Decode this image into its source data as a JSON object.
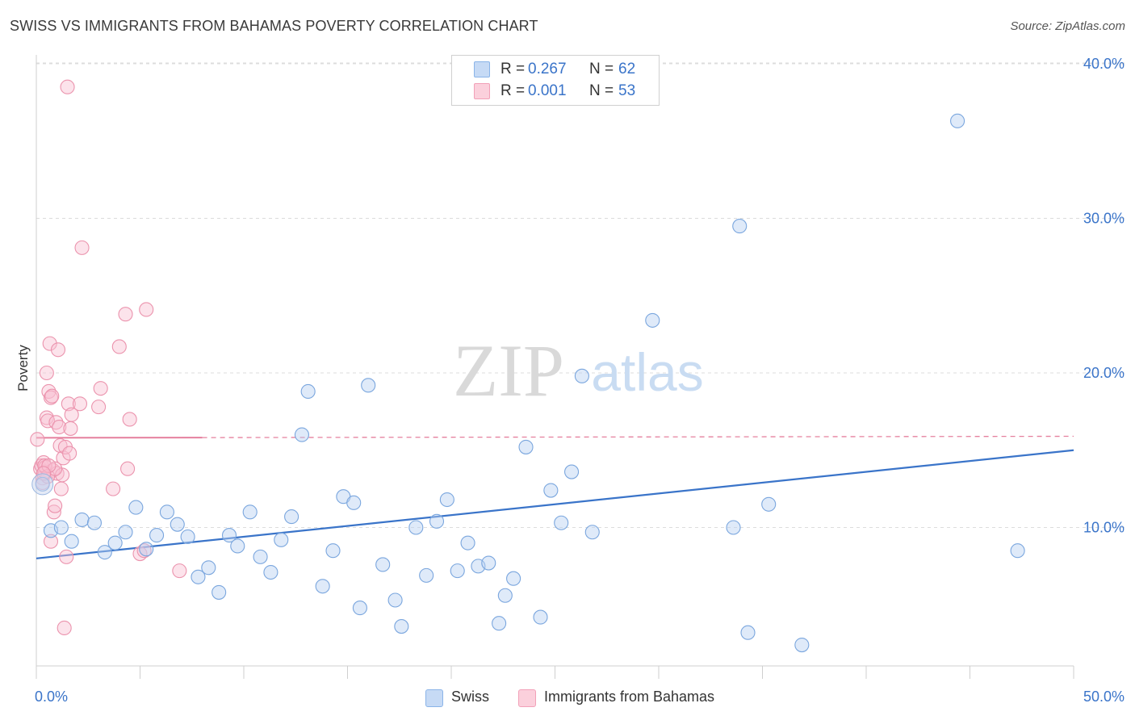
{
  "header": {
    "title": "SWISS VS IMMIGRANTS FROM BAHAMAS POVERTY CORRELATION CHART",
    "source": "Source: ZipAtlas.com"
  },
  "watermark": {
    "zip": "ZIP",
    "atlas": "atlas"
  },
  "legend": {
    "rows": [
      {
        "r_label": "R =",
        "r_value": "0.267",
        "n_label": "N =",
        "n_value": "62",
        "color": "#8ab4e8"
      },
      {
        "r_label": "R =",
        "r_value": "0.001",
        "n_label": "N =",
        "n_value": "53",
        "color": "#f2a0b8"
      }
    ]
  },
  "bottom_legend": {
    "items": [
      {
        "label": "Swiss",
        "color": "#8ab4e8"
      },
      {
        "label": "Immigrants from Bahamas",
        "color": "#f2a0b8"
      }
    ]
  },
  "chart_data": {
    "type": "scatter",
    "title": "SWISS VS IMMIGRANTS FROM BAHAMAS POVERTY CORRELATION CHART",
    "xlabel": "",
    "ylabel": "Poverty",
    "xlim": [
      0,
      50
    ],
    "ylim": [
      0,
      42
    ],
    "x_tick_labels": [
      "0.0%",
      "50.0%"
    ],
    "y_ticks": [
      10,
      20,
      30,
      40
    ],
    "y_tick_labels": [
      "10.0%",
      "20.0%",
      "30.0%",
      "40.0%"
    ],
    "grid": true,
    "legend_position": "top-center",
    "colors": {
      "swiss": "#3a74c9",
      "bahamas": "#e5809e",
      "axis_text": "#3a74c9"
    },
    "series": [
      {
        "name": "Swiss",
        "color": "#8ab4e8",
        "trend": {
          "x": [
            0,
            50
          ],
          "y": [
            8.0,
            15.0
          ]
        },
        "points": [
          [
            0.3,
            12.8
          ],
          [
            0.7,
            9.8
          ],
          [
            1.2,
            10.0
          ],
          [
            1.7,
            9.1
          ],
          [
            2.2,
            10.5
          ],
          [
            2.8,
            10.3
          ],
          [
            3.3,
            8.4
          ],
          [
            3.8,
            9.0
          ],
          [
            4.3,
            9.7
          ],
          [
            4.8,
            11.3
          ],
          [
            5.3,
            8.6
          ],
          [
            5.8,
            9.5
          ],
          [
            6.3,
            11.0
          ],
          [
            6.8,
            10.2
          ],
          [
            7.3,
            9.4
          ],
          [
            7.8,
            6.8
          ],
          [
            8.3,
            7.4
          ],
          [
            8.8,
            5.8
          ],
          [
            9.3,
            9.5
          ],
          [
            9.7,
            8.8
          ],
          [
            10.3,
            11.0
          ],
          [
            10.8,
            8.1
          ],
          [
            11.3,
            7.1
          ],
          [
            11.8,
            9.2
          ],
          [
            12.3,
            10.7
          ],
          [
            12.8,
            16.0
          ],
          [
            13.1,
            18.8
          ],
          [
            13.8,
            6.2
          ],
          [
            14.3,
            8.5
          ],
          [
            14.8,
            12.0
          ],
          [
            15.3,
            11.6
          ],
          [
            15.6,
            4.8
          ],
          [
            16.0,
            19.2
          ],
          [
            16.7,
            7.6
          ],
          [
            17.3,
            5.3
          ],
          [
            17.6,
            3.6
          ],
          [
            18.3,
            10.0
          ],
          [
            18.8,
            6.9
          ],
          [
            19.3,
            10.4
          ],
          [
            19.8,
            11.8
          ],
          [
            20.3,
            7.2
          ],
          [
            20.8,
            9.0
          ],
          [
            21.3,
            7.5
          ],
          [
            21.8,
            7.7
          ],
          [
            22.3,
            3.8
          ],
          [
            22.6,
            5.6
          ],
          [
            23.0,
            6.7
          ],
          [
            23.6,
            15.2
          ],
          [
            24.3,
            4.2
          ],
          [
            24.8,
            12.4
          ],
          [
            25.3,
            10.3
          ],
          [
            25.8,
            13.6
          ],
          [
            26.3,
            19.8
          ],
          [
            26.8,
            9.7
          ],
          [
            29.7,
            23.4
          ],
          [
            33.6,
            10.0
          ],
          [
            33.9,
            29.5
          ],
          [
            34.3,
            3.2
          ],
          [
            35.3,
            11.5
          ],
          [
            36.9,
            2.4
          ],
          [
            44.4,
            36.3
          ],
          [
            47.3,
            8.5
          ]
        ]
      },
      {
        "name": "Immigrants from Bahamas",
        "color": "#f2a0b8",
        "trend": {
          "x": [
            0,
            50
          ],
          "y": [
            15.8,
            15.9
          ]
        },
        "points": [
          [
            0.05,
            15.7
          ],
          [
            0.2,
            13.8
          ],
          [
            0.25,
            14.0
          ],
          [
            0.3,
            13.2
          ],
          [
            0.3,
            12.9
          ],
          [
            0.35,
            14.2
          ],
          [
            0.4,
            13.6
          ],
          [
            0.45,
            13.9
          ],
          [
            0.5,
            17.1
          ],
          [
            0.5,
            20.0
          ],
          [
            0.55,
            16.9
          ],
          [
            0.6,
            18.8
          ],
          [
            0.65,
            21.9
          ],
          [
            0.7,
            18.4
          ],
          [
            0.75,
            18.5
          ],
          [
            0.8,
            13.7
          ],
          [
            0.85,
            11.0
          ],
          [
            0.9,
            11.4
          ],
          [
            0.95,
            16.8
          ],
          [
            1.0,
            13.5
          ],
          [
            1.05,
            21.5
          ],
          [
            1.1,
            16.5
          ],
          [
            1.15,
            15.3
          ],
          [
            1.2,
            12.5
          ],
          [
            1.25,
            13.4
          ],
          [
            1.3,
            14.5
          ],
          [
            1.35,
            3.5
          ],
          [
            1.4,
            15.2
          ],
          [
            1.45,
            8.1
          ],
          [
            1.5,
            38.5
          ],
          [
            1.55,
            18.0
          ],
          [
            1.6,
            14.8
          ],
          [
            1.65,
            16.4
          ],
          [
            1.7,
            17.3
          ],
          [
            2.1,
            18.0
          ],
          [
            3.0,
            17.8
          ],
          [
            3.1,
            19.0
          ],
          [
            2.2,
            28.1
          ],
          [
            3.7,
            12.5
          ],
          [
            4.0,
            21.7
          ],
          [
            4.3,
            23.8
          ],
          [
            4.4,
            13.8
          ],
          [
            4.5,
            17.0
          ],
          [
            5.0,
            8.3
          ],
          [
            5.2,
            8.5
          ],
          [
            5.3,
            24.1
          ],
          [
            6.9,
            7.2
          ],
          [
            0.7,
            9.1
          ],
          [
            0.4,
            14.0
          ],
          [
            0.55,
            13.3
          ],
          [
            0.9,
            13.8
          ],
          [
            0.6,
            14.0
          ],
          [
            0.35,
            13.5
          ]
        ]
      }
    ]
  }
}
